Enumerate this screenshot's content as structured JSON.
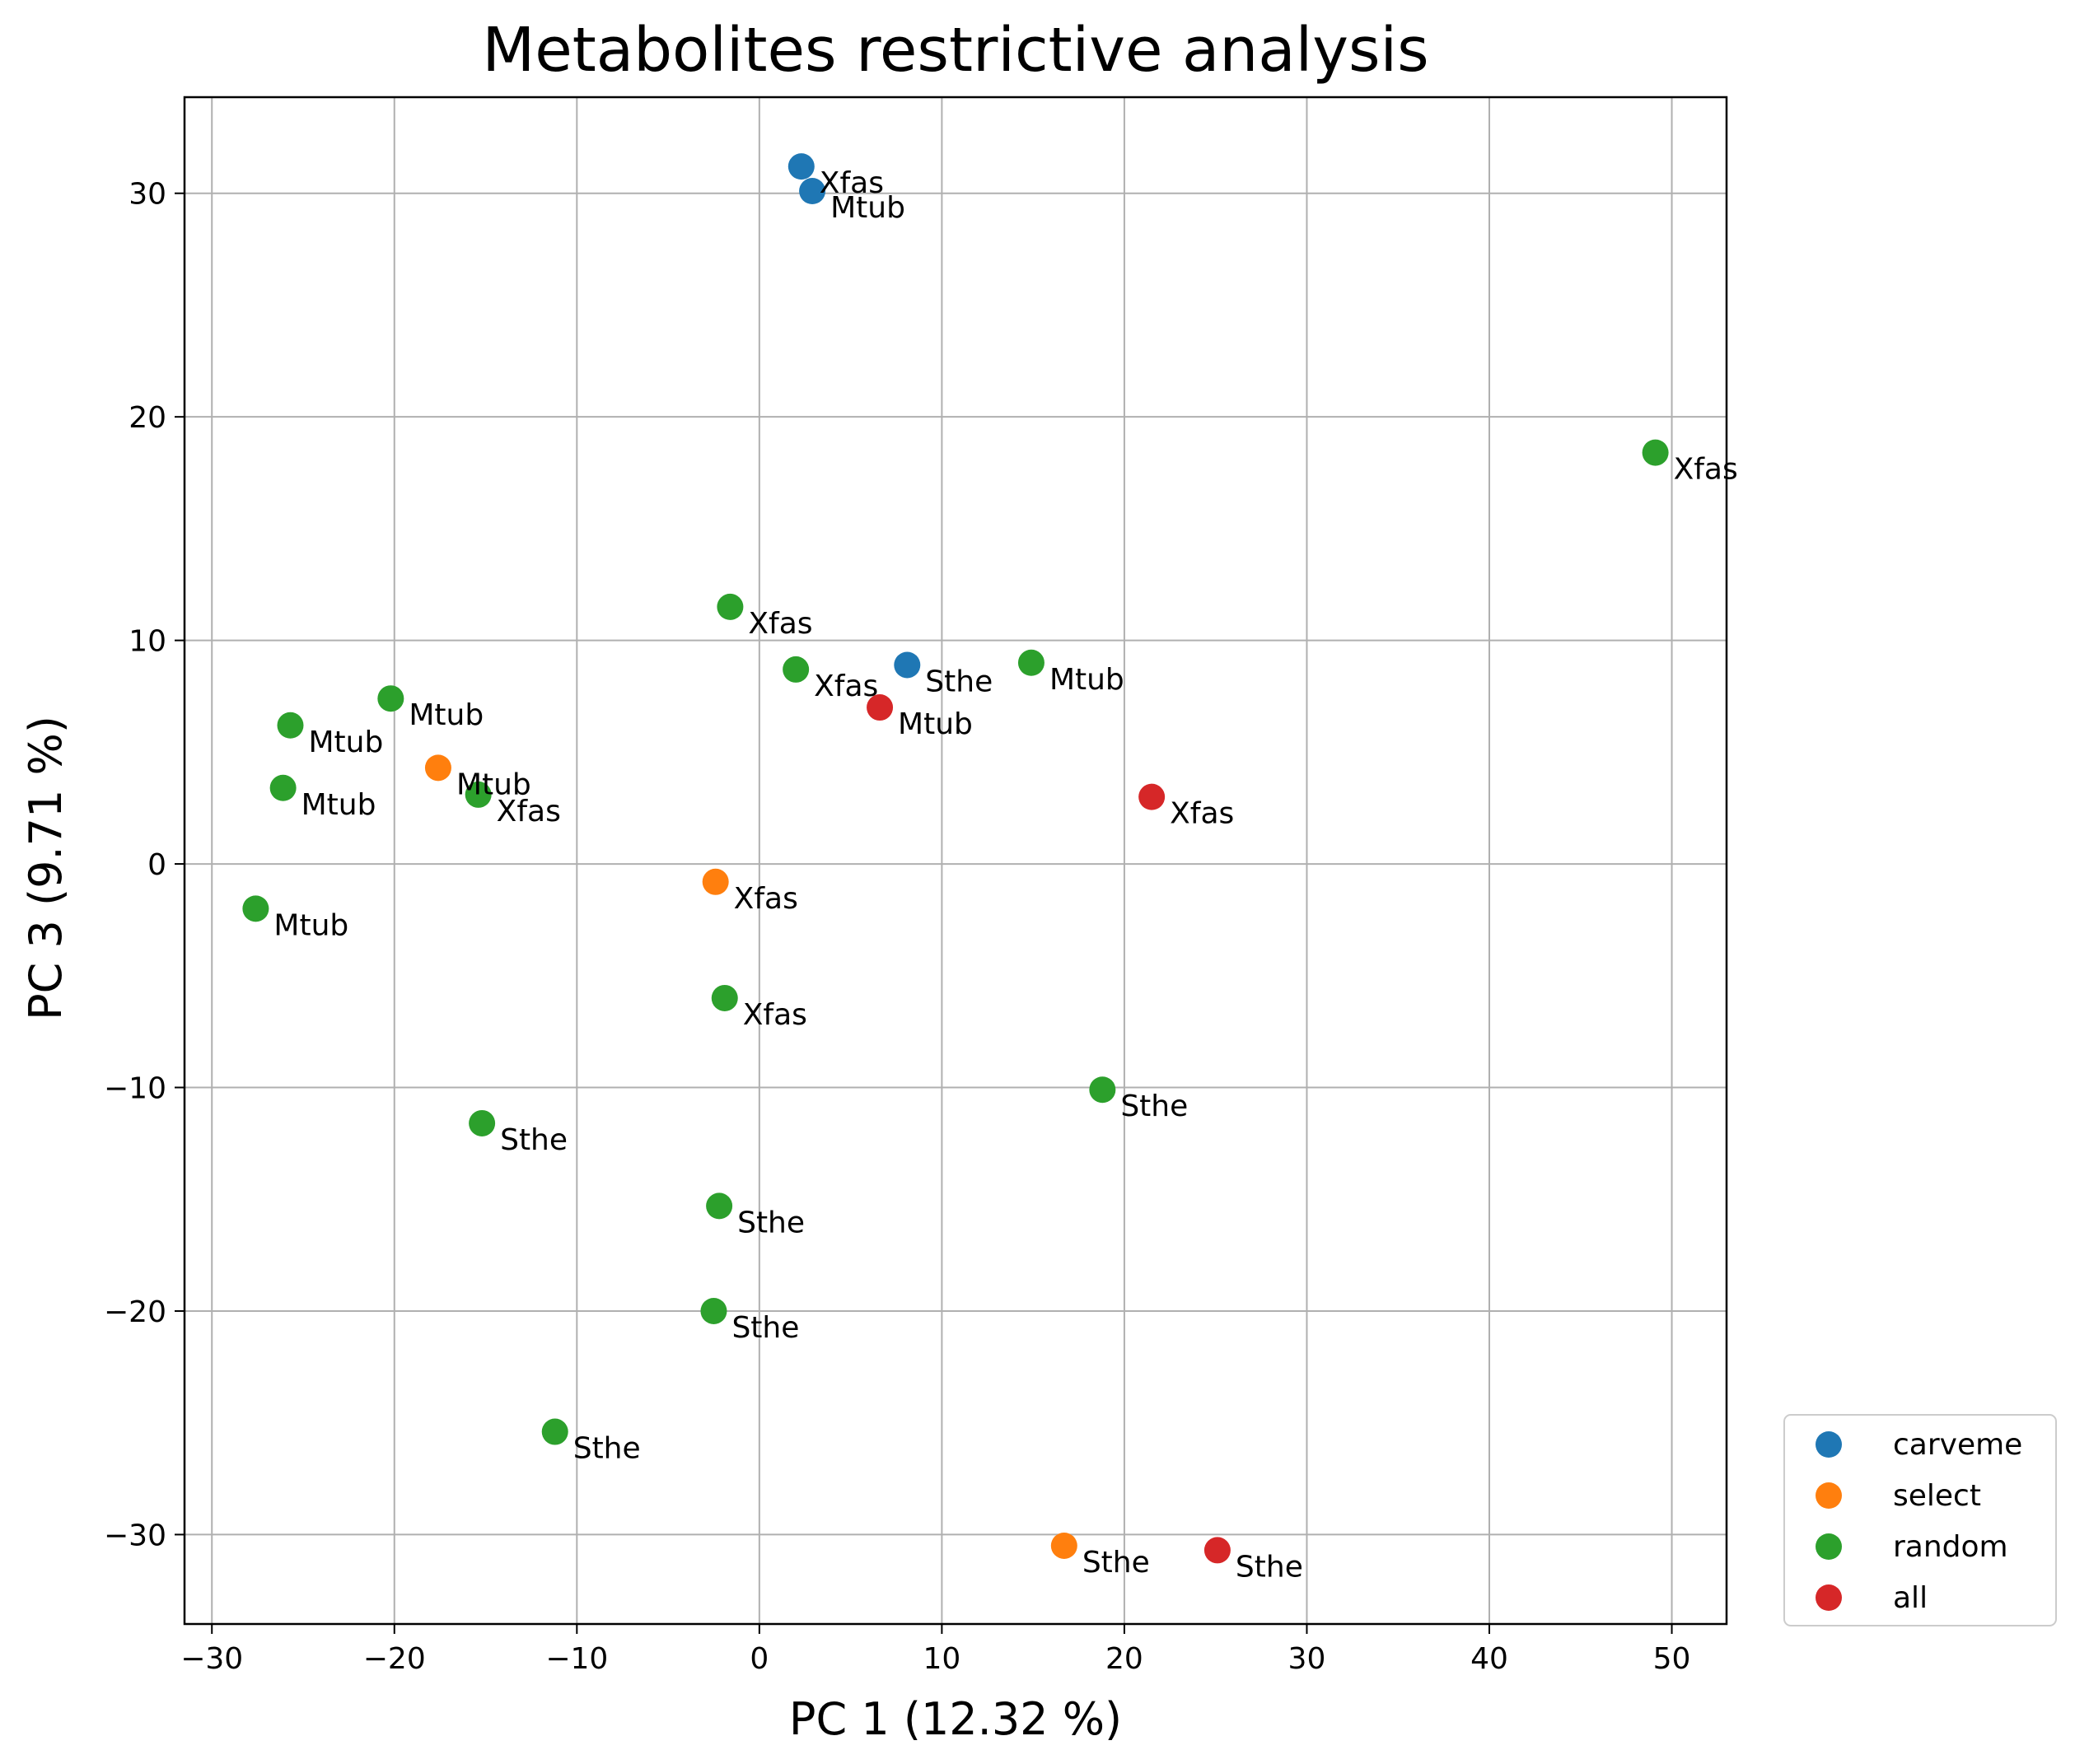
{
  "chart_data": {
    "type": "scatter",
    "title": "Metabolites restrictive analysis",
    "xlabel": "PC 1 (12.32 %)",
    "ylabel": "PC 3 (9.71 %)",
    "xlim": [
      -31.5,
      53
    ],
    "ylim": [
      -34,
      34.3
    ],
    "xticks": [
      -30,
      -20,
      -10,
      0,
      10,
      20,
      30,
      40,
      50
    ],
    "yticks": [
      -30,
      -20,
      -10,
      0,
      10,
      20,
      30
    ],
    "xtick_labels": [
      "−30",
      "−20",
      "−10",
      "0",
      "10",
      "20",
      "30",
      "40",
      "50"
    ],
    "ytick_labels": [
      "−30",
      "−20",
      "−10",
      "0",
      "10",
      "20",
      "30"
    ],
    "grid": true,
    "legend_position": "outside-bottom-right",
    "series": [
      {
        "name": "carveme",
        "color": "#1f77b4",
        "points": [
          {
            "x": 2.3,
            "y": 31.2,
            "label": "Xfas"
          },
          {
            "x": 2.9,
            "y": 30.1,
            "label": "Mtub"
          },
          {
            "x": 8.1,
            "y": 8.9,
            "label": "Sthe"
          }
        ]
      },
      {
        "name": "select",
        "color": "#ff7f0e",
        "points": [
          {
            "x": -17.6,
            "y": 4.3,
            "label": "Mtub"
          },
          {
            "x": -2.4,
            "y": -0.8,
            "label": "Xfas"
          },
          {
            "x": 16.7,
            "y": -30.5,
            "label": "Sthe"
          }
        ]
      },
      {
        "name": "random",
        "color": "#2ca02c",
        "points": [
          {
            "x": 49.1,
            "y": 18.4,
            "label": "Xfas"
          },
          {
            "x": -1.6,
            "y": 11.5,
            "label": "Xfas"
          },
          {
            "x": 2.0,
            "y": 8.7,
            "label": "Xfas"
          },
          {
            "x": 14.9,
            "y": 9.0,
            "label": "Mtub"
          },
          {
            "x": -20.2,
            "y": 7.4,
            "label": "Mtub"
          },
          {
            "x": -25.7,
            "y": 6.2,
            "label": "Mtub"
          },
          {
            "x": -26.1,
            "y": 3.4,
            "label": "Mtub"
          },
          {
            "x": -15.4,
            "y": 3.1,
            "label": "Xfas"
          },
          {
            "x": -27.6,
            "y": -2.0,
            "label": "Mtub"
          },
          {
            "x": -1.9,
            "y": -6.0,
            "label": "Xfas"
          },
          {
            "x": 18.8,
            "y": -10.1,
            "label": "Sthe"
          },
          {
            "x": -15.2,
            "y": -11.6,
            "label": "Sthe"
          },
          {
            "x": -2.2,
            "y": -15.3,
            "label": "Sthe"
          },
          {
            "x": -2.5,
            "y": -20.0,
            "label": "Sthe"
          },
          {
            "x": -11.2,
            "y": -25.4,
            "label": "Sthe"
          }
        ]
      },
      {
        "name": "all",
        "color": "#d62728",
        "points": [
          {
            "x": 6.6,
            "y": 7.0,
            "label": "Mtub"
          },
          {
            "x": 21.5,
            "y": 3.0,
            "label": "Xfas"
          },
          {
            "x": 25.1,
            "y": -30.7,
            "label": "Sthe"
          }
        ]
      }
    ]
  }
}
